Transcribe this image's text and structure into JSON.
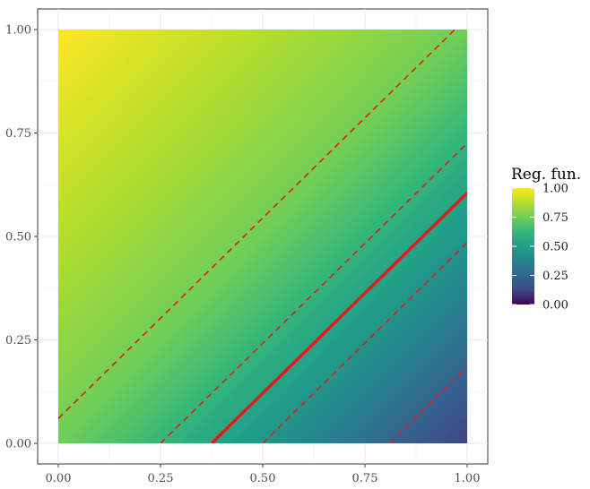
{
  "chart_data": {
    "type": "heatmap",
    "title": "",
    "xlabel": "",
    "ylabel": "",
    "xlim": [
      0,
      1
    ],
    "ylim": [
      0,
      1
    ],
    "x_ticks": [
      "0.00",
      "0.25",
      "0.50",
      "0.75",
      "1.00"
    ],
    "y_ticks": [
      "0.00",
      "0.25",
      "0.50",
      "0.75",
      "1.00"
    ],
    "grid": true,
    "colormap": "viridis",
    "field": "value = 0.6 + 0.4*y - 0.4*x (linear gradient, max 1.00 at top-left, min ~0.20 at bottom-right)",
    "lines": [
      {
        "style": "dashed",
        "color": "#e41a1c",
        "points": [
          [
            0.0,
            0.06
          ],
          [
            0.97,
            1.0
          ]
        ]
      },
      {
        "style": "dashed",
        "color": "#e41a1c",
        "points": [
          [
            0.25,
            0.0
          ],
          [
            1.0,
            0.725
          ]
        ]
      },
      {
        "style": "solid",
        "color": "#e41a1c",
        "points": [
          [
            0.375,
            0.0
          ],
          [
            1.0,
            0.605
          ]
        ]
      },
      {
        "style": "dashed",
        "color": "#e41a1c",
        "points": [
          [
            0.5,
            0.0
          ],
          [
            1.0,
            0.485
          ]
        ]
      },
      {
        "style": "dashed",
        "color": "#e41a1c",
        "points": [
          [
            0.81,
            0.0
          ],
          [
            1.0,
            0.185
          ]
        ]
      }
    ],
    "legend": {
      "title": "Reg. fun.",
      "placement": "right",
      "labels": [
        "1.00",
        "0.75",
        "0.50",
        "0.25",
        "0.00"
      ],
      "range": [
        0,
        1
      ]
    }
  }
}
